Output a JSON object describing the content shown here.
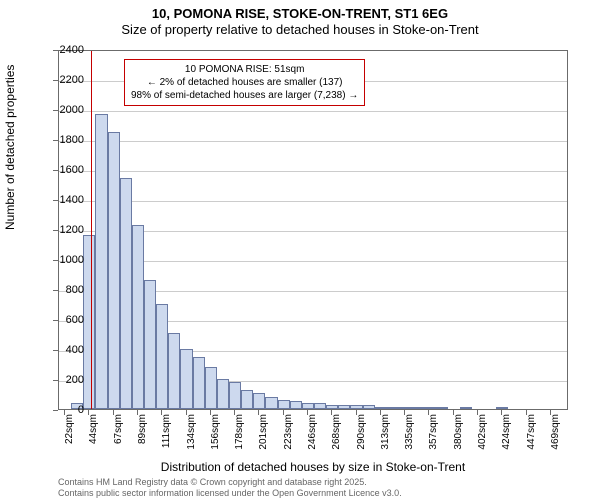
{
  "title": {
    "line1": "10, POMONA RISE, STOKE-ON-TRENT, ST1 6EG",
    "line2": "Size of property relative to detached houses in Stoke-on-Trent"
  },
  "chart": {
    "type": "histogram",
    "ylabel": "Number of detached properties",
    "xlabel": "Distribution of detached houses by size in Stoke-on-Trent",
    "ylim": [
      0,
      2400
    ],
    "ytick_step": 200,
    "x_ticks": [
      "22sqm",
      "44sqm",
      "67sqm",
      "89sqm",
      "111sqm",
      "134sqm",
      "156sqm",
      "178sqm",
      "201sqm",
      "223sqm",
      "246sqm",
      "268sqm",
      "290sqm",
      "313sqm",
      "335sqm",
      "357sqm",
      "380sqm",
      "402sqm",
      "424sqm",
      "447sqm",
      "469sqm"
    ],
    "n_bars": 42,
    "values": [
      0,
      40,
      1160,
      1970,
      1850,
      1540,
      1230,
      860,
      700,
      510,
      400,
      350,
      280,
      200,
      180,
      130,
      110,
      80,
      60,
      55,
      40,
      40,
      30,
      30,
      30,
      25,
      15,
      12,
      10,
      10,
      12,
      8,
      0,
      5,
      0,
      0,
      5,
      0,
      0,
      0,
      0,
      0
    ],
    "bar_fill": "#cdd9ee",
    "bar_stroke": "#6a7aa3",
    "grid_color": "#cccccc",
    "axis_color": "#6b6b6b",
    "background_color": "#ffffff",
    "marker": {
      "position_bin": 2.6,
      "color": "#c40000"
    },
    "annotation": {
      "border_color": "#c40000",
      "line1": "10 POMONA RISE: 51sqm",
      "line2": "← 2% of detached houses are smaller (137)",
      "line3": "98% of semi-detached houses are larger (7,238) →"
    }
  },
  "footer": {
    "line1": "Contains HM Land Registry data © Crown copyright and database right 2025.",
    "line2": "Contains public sector information licensed under the Open Government Licence v3.0."
  }
}
